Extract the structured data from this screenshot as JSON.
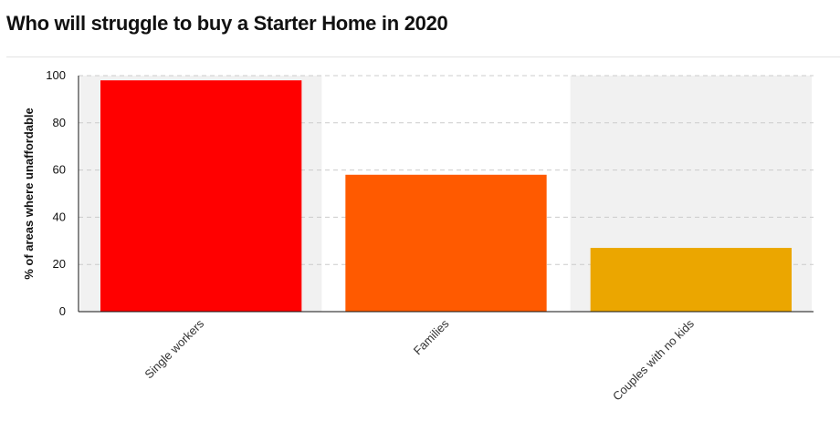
{
  "header": {
    "title": "Who will struggle to buy a Starter Home in 2020"
  },
  "chart_data": {
    "type": "bar",
    "title": "Who will struggle to buy a Starter Home in 2020",
    "xlabel": "",
    "ylabel": "% of areas where unaffordable",
    "categories": [
      "Single workers",
      "Families",
      "Couples with no kids"
    ],
    "values": [
      98,
      58,
      27
    ],
    "colors": [
      "#ff0000",
      "#ff5a00",
      "#eba600"
    ],
    "band_colors": [
      "#f1f1f1",
      "#ffffff",
      "#f1f1f1"
    ],
    "ylim": [
      0,
      100
    ],
    "yticks": [
      0,
      20,
      40,
      60,
      80,
      100
    ],
    "ytick_labels": [
      "0",
      "20",
      "40",
      "60",
      "80",
      "100"
    ],
    "grid": true,
    "grid_color": "#cccccc",
    "legend": "none"
  }
}
